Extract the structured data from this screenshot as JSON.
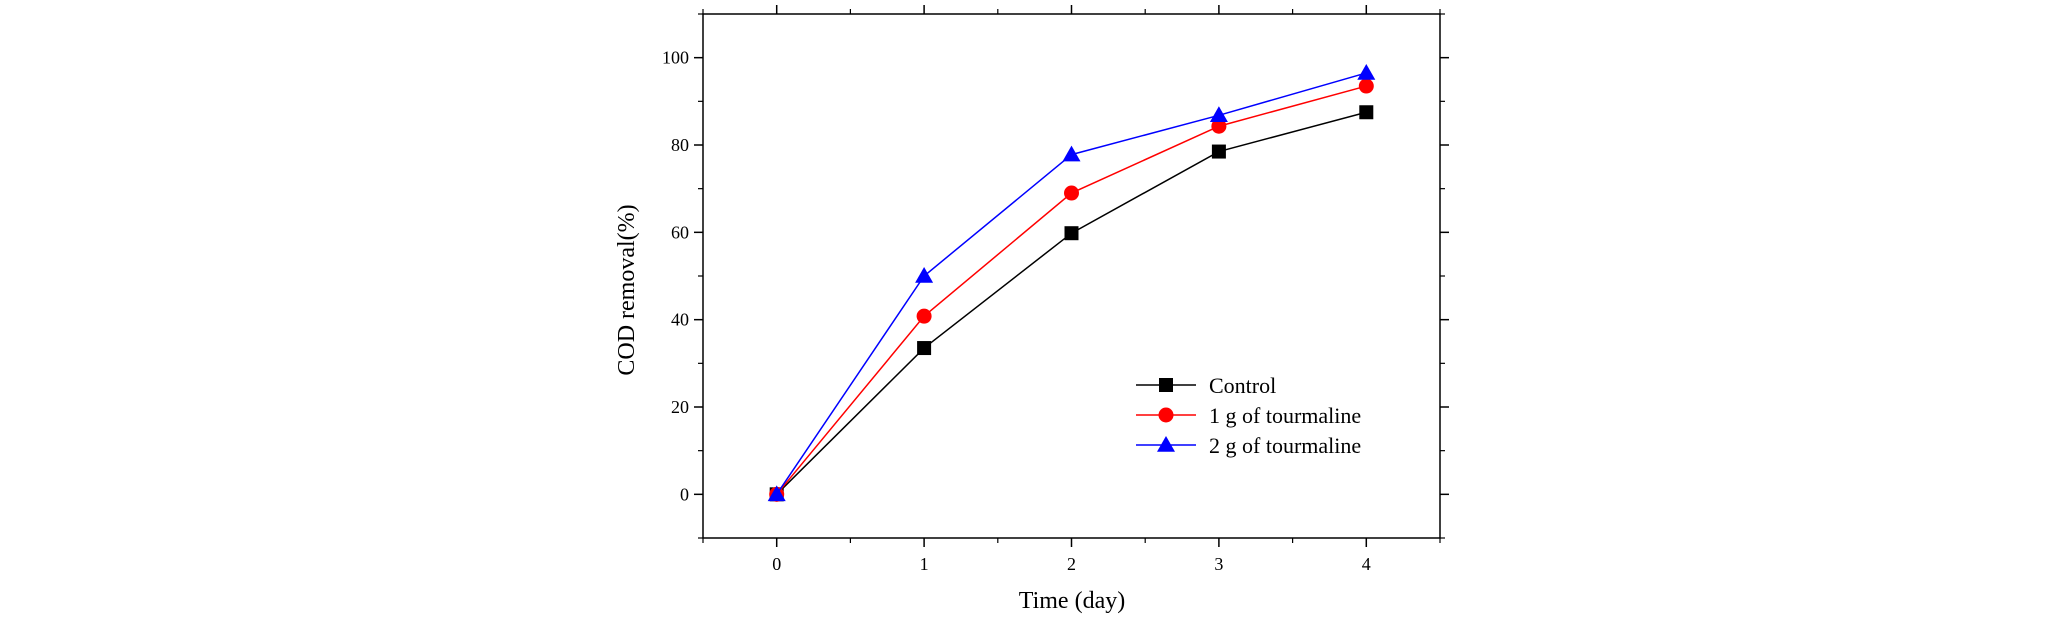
{
  "chart_data": {
    "type": "line",
    "title": "",
    "xlabel": "Time (day)",
    "ylabel": "COD removal(%)",
    "x": [
      0,
      1,
      2,
      3,
      4
    ],
    "xlim": [
      -0.5,
      4.5
    ],
    "ylim": [
      -10,
      110
    ],
    "xticks": [
      0,
      1,
      2,
      3,
      4
    ],
    "yticks": [
      0,
      20,
      40,
      60,
      80,
      100
    ],
    "grid": false,
    "legend_position": "bottom-right",
    "series": [
      {
        "name": "Control",
        "marker": "square",
        "color": "#000000",
        "values": [
          0,
          33.5,
          59.8,
          78.5,
          87.5
        ]
      },
      {
        "name": "1 g of tourmaline",
        "marker": "circle",
        "color": "#ff0000",
        "values": [
          0,
          40.8,
          69,
          84.3,
          93.5
        ]
      },
      {
        "name": "2 g of tourmaline",
        "marker": "triangle",
        "color": "#0000ff",
        "values": [
          0,
          50,
          77.8,
          86.8,
          96.5
        ]
      }
    ]
  }
}
